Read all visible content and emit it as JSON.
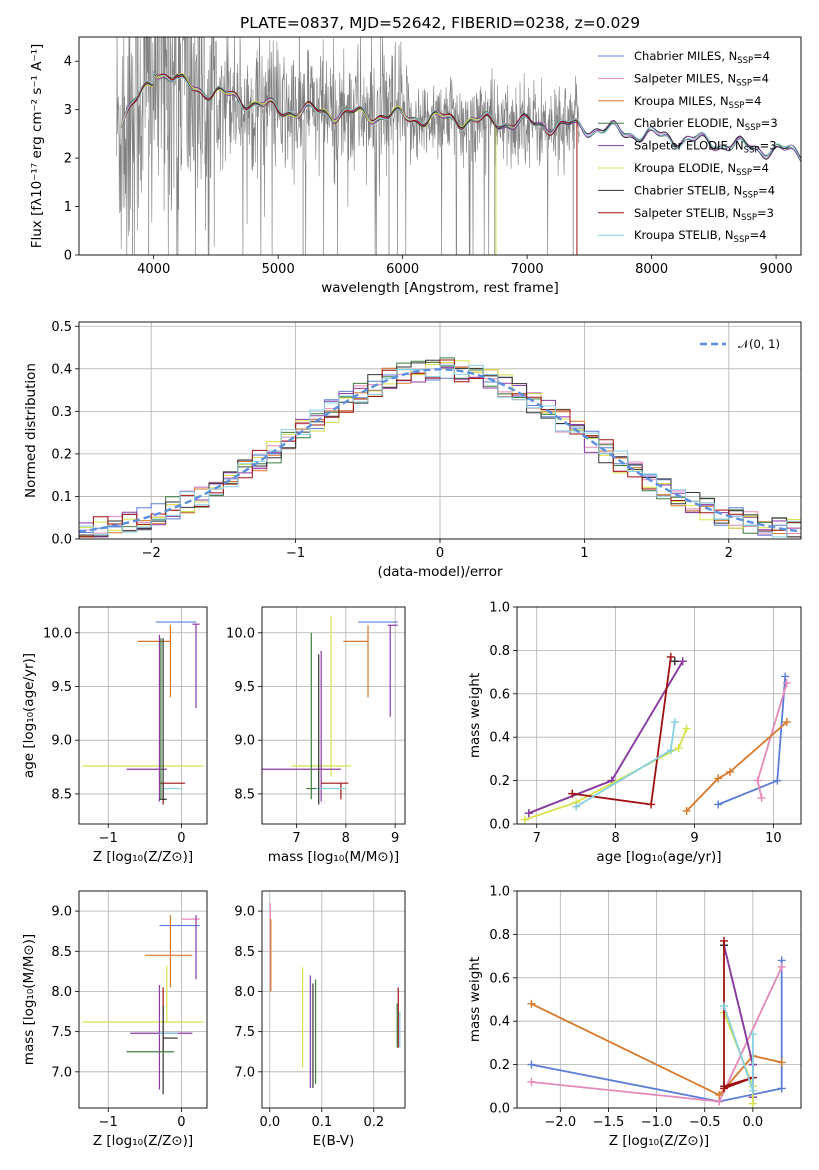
{
  "chart_data": [
    {
      "id": "spectrum",
      "type": "line",
      "title": "PLATE=0837, MJD=52642, FIBERID=0238, z=0.029",
      "xlabel": "wavelength [Angstrom, rest frame]",
      "ylabel": "Flux [fλ10⁻¹⁷ erg cm⁻² s⁻¹ A⁻¹]",
      "xlim": [
        3400,
        9200
      ],
      "ylim": [
        0,
        4.5
      ],
      "xticks": [
        4000,
        5000,
        6000,
        7000,
        8000,
        9000
      ],
      "yticks": [
        0,
        1,
        2,
        3,
        4
      ],
      "grid": false,
      "legend": "top-right",
      "legend_labels": [
        {
          "label": "Chabrier MILES, N",
          "sub": "SSP",
          "tail": "=4",
          "color": "#5b7dd6"
        },
        {
          "label": "Salpeter MILES, N",
          "sub": "SSP",
          "tail": "=4",
          "color": "#e589bb"
        },
        {
          "label": "Kroupa MILES, N",
          "sub": "SSP",
          "tail": "=4",
          "color": "#d7792a"
        },
        {
          "label": "Chabrier ELODIE, N",
          "sub": "SSP",
          "tail": "=3",
          "color": "#3f7f3f"
        },
        {
          "label": "Salpeter ELODIE, N",
          "sub": "SSP",
          "tail": "=3",
          "color": "#8e3aa6"
        },
        {
          "label": "Kroupa ELODIE, N",
          "sub": "SSP",
          "tail": "=4",
          "color": "#d7e24a"
        },
        {
          "label": "Chabrier STELIB, N",
          "sub": "SSP",
          "tail": "=4",
          "color": "#333333"
        },
        {
          "label": "Salpeter STELIB, N",
          "sub": "SSP",
          "tail": "=3",
          "color": "#a01010"
        },
        {
          "label": "Kroupa STELIB, N",
          "sub": "SSP",
          "tail": "=4",
          "color": "#86cfe3"
        }
      ],
      "data_color": "#808080",
      "data_range": [
        3700,
        7420
      ],
      "model_range": [
        3700,
        9200
      ]
    },
    {
      "id": "residuals",
      "type": "line",
      "xlabel": "(data-model)/error",
      "ylabel": "Normed distribution",
      "xlim": [
        -2.5,
        2.5
      ],
      "ylim": [
        0,
        0.51
      ],
      "xticks": [
        -2,
        -1,
        0,
        1,
        2
      ],
      "yticks": [
        0.0,
        0.1,
        0.2,
        0.3,
        0.4,
        0.5
      ],
      "grid": true,
      "legend": "top-right",
      "gaussian_label": "𝒩(0, 1)",
      "gaussian_color": "#5b8fe0",
      "bin_width": 0.1,
      "series_colors": [
        "#5b7dd6",
        "#e589bb",
        "#d7792a",
        "#3f7f3f",
        "#8e3aa6",
        "#d7e24a",
        "#333333",
        "#a01010",
        "#86cfe3"
      ]
    },
    {
      "id": "age_vs_z",
      "type": "scatter",
      "xlabel": "Z [log₁₀(Z/Z⊙)]",
      "ylabel": "age  [log₁₀(age/yr)]",
      "xlim": [
        -1.4,
        0.35
      ],
      "ylim": [
        8.22,
        10.24
      ],
      "xticks": [
        -1,
        0
      ],
      "yticks": [
        8.5,
        9.0,
        9.5,
        10.0
      ],
      "grid": true,
      "points": [
        {
          "x": 0.0,
          "y": 10.1,
          "xerr": [
            0.35,
            0.2
          ],
          "yerr": [
            0.0,
            0.0
          ],
          "color": "#5b7dd6"
        },
        {
          "x": 0.2,
          "y": 10.08,
          "xerr": [
            0.05,
            0.05
          ],
          "yerr": [
            0.78,
            0.0
          ],
          "color": "#8e3aa6"
        },
        {
          "x": -0.15,
          "y": 9.92,
          "xerr": [
            0.45,
            0.0
          ],
          "yerr": [
            0.52,
            0.15
          ],
          "color": "#d7792a"
        },
        {
          "x": -0.2,
          "y": 8.76,
          "xerr": [
            1.15,
            0.5
          ],
          "yerr": [
            0.0,
            0.0
          ],
          "color": "#d7e24a"
        },
        {
          "x": -0.3,
          "y": 8.73,
          "xerr": [
            0.45,
            0.1
          ],
          "yerr": [
            0.3,
            1.25
          ],
          "color": "#8e3aa6"
        },
        {
          "x": -0.25,
          "y": 8.6,
          "xerr": [
            0.05,
            0.3
          ],
          "yerr": [
            0.2,
            0.0
          ],
          "color": "#a01010"
        },
        {
          "x": -0.15,
          "y": 8.55,
          "xerr": [
            0.1,
            0.15
          ],
          "yerr": [
            0.0,
            0.0
          ],
          "color": "#86cfe3"
        },
        {
          "x": -0.25,
          "y": 8.45,
          "xerr": [
            0.05,
            0.05
          ],
          "yerr": [
            0.0,
            1.5
          ],
          "color": "#333333"
        },
        {
          "x": -0.28,
          "y": 8.5,
          "xerr": [
            0.0,
            0.0
          ],
          "yerr": [
            0.05,
            1.45
          ],
          "color": "#3f7f3f"
        }
      ]
    },
    {
      "id": "age_vs_mass",
      "type": "scatter",
      "xlabel": "mass [log₁₀(M/M⊙)]",
      "ylabel": "",
      "xlim": [
        6.3,
        9.2
      ],
      "ylim": [
        8.22,
        10.24
      ],
      "xticks": [
        7,
        8,
        9
      ],
      "yticks": [
        8.5,
        9.0,
        9.5,
        10.0
      ],
      "grid": true,
      "points": [
        {
          "x": 8.85,
          "y": 10.1,
          "xerr": [
            0.6,
            0.2
          ],
          "yerr": [
            0.0,
            0.0
          ],
          "color": "#5b7dd6"
        },
        {
          "x": 8.9,
          "y": 10.07,
          "xerr": [
            0.05,
            0.15
          ],
          "yerr": [
            0.85,
            0.0
          ],
          "color": "#8e3aa6"
        },
        {
          "x": 8.45,
          "y": 9.92,
          "xerr": [
            0.5,
            0.0
          ],
          "yerr": [
            0.52,
            0.15
          ],
          "color": "#d7792a"
        },
        {
          "x": 7.7,
          "y": 8.76,
          "xerr": [
            0.8,
            0.4
          ],
          "yerr": [
            0.1,
            1.4
          ],
          "color": "#d7e24a"
        },
        {
          "x": 7.5,
          "y": 8.73,
          "xerr": [
            1.2,
            0.4
          ],
          "yerr": [
            0.3,
            1.1
          ],
          "color": "#8e3aa6"
        },
        {
          "x": 7.9,
          "y": 8.6,
          "xerr": [
            0.4,
            0.15
          ],
          "yerr": [
            0.15,
            0.0
          ],
          "color": "#a01010"
        },
        {
          "x": 7.8,
          "y": 8.55,
          "xerr": [
            0.45,
            0.2
          ],
          "yerr": [
            0.0,
            0.0
          ],
          "color": "#86cfe3"
        },
        {
          "x": 7.3,
          "y": 8.55,
          "xerr": [
            0.1,
            0.1
          ],
          "yerr": [
            0.1,
            1.45
          ],
          "color": "#3f7f3f"
        },
        {
          "x": 7.45,
          "y": 8.45,
          "xerr": [
            0.0,
            0.0
          ],
          "yerr": [
            0.05,
            1.35
          ],
          "color": "#333333"
        }
      ]
    },
    {
      "id": "weight_vs_age",
      "type": "line",
      "xlabel": "age  [log₁₀(age/yr)]",
      "ylabel": "mass weight",
      "xlim": [
        6.75,
        10.35
      ],
      "ylim": [
        0,
        1.0
      ],
      "xticks": [
        7,
        8,
        9,
        10
      ],
      "yticks": [
        0.0,
        0.2,
        0.4,
        0.6,
        0.8,
        1.0
      ],
      "grid": true,
      "series": [
        {
          "name": "Chabrier MILES",
          "color": "#5b7dd6",
          "x": [
            9.3,
            10.05,
            10.15
          ],
          "y": [
            0.09,
            0.2,
            0.68
          ]
        },
        {
          "name": "Salpeter MILES",
          "color": "#e589bb",
          "x": [
            9.85,
            9.8,
            10.17
          ],
          "y": [
            0.12,
            0.2,
            0.65
          ]
        },
        {
          "name": "Kroupa MILES",
          "color": "#d7792a",
          "x": [
            8.9,
            9.3,
            9.45,
            10.17
          ],
          "y": [
            0.06,
            0.21,
            0.24,
            0.47
          ]
        },
        {
          "name": "Chabrier ELODIE",
          "color": "#3f7f3f",
          "x": [
            6.9,
            7.95,
            8.85
          ],
          "y": [
            0.05,
            0.2,
            0.75
          ]
        },
        {
          "name": "Salpeter ELODIE",
          "color": "#8e3aa6",
          "x": [
            6.9,
            7.95,
            8.85
          ],
          "y": [
            0.05,
            0.2,
            0.75
          ]
        },
        {
          "name": "Kroupa ELODIE",
          "color": "#d7e24a",
          "x": [
            6.85,
            7.5,
            8.8,
            8.9
          ],
          "y": [
            0.02,
            0.1,
            0.35,
            0.44
          ]
        },
        {
          "name": "Chabrier STELIB",
          "color": "#333333",
          "x": [
            8.75
          ],
          "y": [
            0.75
          ]
        },
        {
          "name": "Salpeter STELIB",
          "color": "#a01010",
          "x": [
            7.45,
            8.45,
            8.7
          ],
          "y": [
            0.14,
            0.09,
            0.77
          ]
        },
        {
          "name": "Kroupa STELIB",
          "color": "#86cfe3",
          "x": [
            7.5,
            8.7,
            8.75
          ],
          "y": [
            0.08,
            0.34,
            0.47
          ]
        }
      ]
    },
    {
      "id": "mass_vs_z",
      "type": "scatter",
      "xlabel": "Z [log₁₀(Z/Z⊙)]",
      "ylabel": "mass [log₁₀(M/M⊙)]",
      "xlim": [
        -1.4,
        0.35
      ],
      "ylim": [
        6.55,
        9.25
      ],
      "xticks": [
        -1,
        0
      ],
      "yticks": [
        7.0,
        7.5,
        8.0,
        8.5,
        9.0
      ],
      "grid": true,
      "points": [
        {
          "x": 0.2,
          "y": 8.9,
          "xerr": [
            0.2,
            0.05
          ],
          "yerr": [
            0.0,
            0.0
          ],
          "color": "#e589bb"
        },
        {
          "x": 0.0,
          "y": 8.82,
          "xerr": [
            0.3,
            0.25
          ],
          "yerr": [
            0.0,
            0.0
          ],
          "color": "#5b7dd6"
        },
        {
          "x": 0.2,
          "y": 8.75,
          "xerr": [
            0.0,
            0.0
          ],
          "yerr": [
            0.6,
            0.2
          ],
          "color": "#8e3aa6"
        },
        {
          "x": -0.15,
          "y": 8.45,
          "xerr": [
            0.35,
            0.3
          ],
          "yerr": [
            0.4,
            0.5
          ],
          "color": "#d7792a"
        },
        {
          "x": -0.2,
          "y": 7.62,
          "xerr": [
            1.15,
            0.5
          ],
          "yerr": [
            0.0,
            0.7
          ],
          "color": "#d7e24a"
        },
        {
          "x": -0.3,
          "y": 7.48,
          "xerr": [
            0.4,
            0.45
          ],
          "yerr": [
            0.7,
            0.6
          ],
          "color": "#8e3aa6"
        },
        {
          "x": -0.25,
          "y": 7.75,
          "xerr": [
            0.0,
            0.0
          ],
          "yerr": [
            0.5,
            0.3
          ],
          "color": "#a01010"
        },
        {
          "x": -0.2,
          "y": 7.48,
          "xerr": [
            0.1,
            0.15
          ],
          "yerr": [
            0.0,
            0.0
          ],
          "color": "#86cfe3"
        },
        {
          "x": -0.25,
          "y": 7.42,
          "xerr": [
            0.0,
            0.2
          ],
          "yerr": [
            0.7,
            0.4
          ],
          "color": "#333333"
        },
        {
          "x": -0.45,
          "y": 7.25,
          "xerr": [
            0.3,
            0.35
          ],
          "yerr": [
            0.0,
            0.0
          ],
          "color": "#3f7f3f"
        }
      ]
    },
    {
      "id": "mass_vs_ebv",
      "type": "scatter",
      "xlabel": "E(B-V)",
      "ylabel": "",
      "xlim": [
        -0.015,
        0.26
      ],
      "ylim": [
        6.55,
        9.25
      ],
      "xticks": [
        0.0,
        0.1,
        0.2
      ],
      "yticks": [
        7.0,
        7.5,
        8.0,
        8.5,
        9.0
      ],
      "grid": true,
      "points": [
        {
          "x": 0.001,
          "y": 8.6,
          "xerr": [
            0.0,
            0.0
          ],
          "yerr": [
            0.6,
            0.5
          ],
          "color": "#e589bb"
        },
        {
          "x": 0.002,
          "y": 8.5,
          "xerr": [
            0.0,
            0.0
          ],
          "yerr": [
            0.5,
            0.4
          ],
          "color": "#d7792a"
        },
        {
          "x": 0.063,
          "y": 7.7,
          "xerr": [
            0.0,
            0.0
          ],
          "yerr": [
            0.65,
            0.6
          ],
          "color": "#d7e24a"
        },
        {
          "x": 0.078,
          "y": 7.5,
          "xerr": [
            0.0,
            0.0
          ],
          "yerr": [
            0.7,
            0.7
          ],
          "color": "#8e3aa6"
        },
        {
          "x": 0.083,
          "y": 7.5,
          "xerr": [
            0.0,
            0.0
          ],
          "yerr": [
            0.7,
            0.6
          ],
          "color": "#333333"
        },
        {
          "x": 0.088,
          "y": 7.45,
          "xerr": [
            0.0,
            0.0
          ],
          "yerr": [
            0.6,
            0.7
          ],
          "color": "#3f7f3f"
        },
        {
          "x": 0.247,
          "y": 7.7,
          "xerr": [
            0.0,
            0.0
          ],
          "yerr": [
            0.4,
            0.35
          ],
          "color": "#a01010"
        },
        {
          "x": 0.25,
          "y": 7.55,
          "xerr": [
            0.0,
            0.0
          ],
          "yerr": [
            0.25,
            0.2
          ],
          "color": "#86cfe3"
        },
        {
          "x": 0.245,
          "y": 7.6,
          "xerr": [
            0.0,
            0.0
          ],
          "yerr": [
            0.3,
            0.25
          ],
          "color": "#3f7f3f"
        }
      ]
    },
    {
      "id": "weight_vs_z",
      "type": "line",
      "xlabel": "Z [log₁₀(Z/Z⊙)]",
      "ylabel": "mass weight",
      "xlim": [
        -2.45,
        0.5
      ],
      "ylim": [
        0,
        1.0
      ],
      "xticks": [
        -2.0,
        -1.5,
        -1.0,
        -0.5,
        0.0
      ],
      "yticks": [
        0.0,
        0.2,
        0.4,
        0.6,
        0.8,
        1.0
      ],
      "grid": true,
      "series": [
        {
          "name": "Chabrier MILES",
          "color": "#5b7dd6",
          "x": [
            -2.3,
            -0.35,
            0.3,
            0.3
          ],
          "y": [
            0.2,
            0.03,
            0.09,
            0.68
          ]
        },
        {
          "name": "Salpeter MILES",
          "color": "#e589bb",
          "x": [
            -2.3,
            -0.35,
            0.3
          ],
          "y": [
            0.12,
            0.03,
            0.65
          ]
        },
        {
          "name": "Kroupa MILES",
          "color": "#d7792a",
          "x": [
            -2.3,
            -0.35,
            0.0,
            0.3
          ],
          "y": [
            0.48,
            0.06,
            0.24,
            0.21
          ]
        },
        {
          "name": "Chabrier ELODIE",
          "color": "#3f7f3f",
          "x": [
            -0.3,
            0.0,
            0.0
          ],
          "y": [
            0.75,
            0.2,
            0.05
          ]
        },
        {
          "name": "Salpeter ELODIE",
          "color": "#8e3aa6",
          "x": [
            -0.3,
            0.0,
            0.0
          ],
          "y": [
            0.75,
            0.2,
            0.05
          ]
        },
        {
          "name": "Kroupa ELODIE",
          "color": "#d7e24a",
          "x": [
            -0.3,
            0.0,
            0.0
          ],
          "y": [
            0.44,
            0.1,
            0.02
          ]
        },
        {
          "name": "Chabrier STELIB",
          "color": "#333333",
          "x": [
            -0.3
          ],
          "y": [
            0.75
          ]
        },
        {
          "name": "Salpeter STELIB",
          "color": "#a01010",
          "x": [
            -0.3,
            -0.3,
            0.0,
            -0.3
          ],
          "y": [
            0.77,
            0.09,
            0.14,
            0.1
          ]
        },
        {
          "name": "Kroupa STELIB",
          "color": "#86cfe3",
          "x": [
            -0.3,
            0.0,
            0.0
          ],
          "y": [
            0.47,
            0.08,
            0.34
          ]
        }
      ]
    }
  ]
}
